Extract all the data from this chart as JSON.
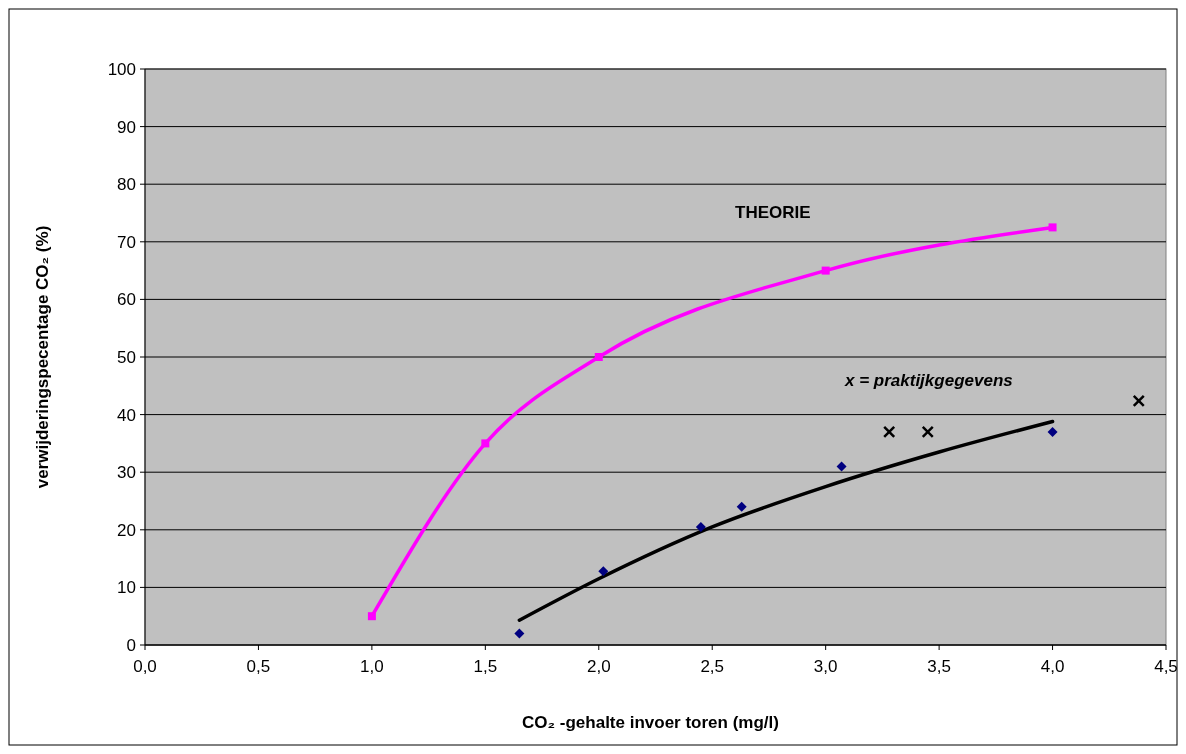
{
  "chart_data": {
    "type": "line",
    "xlabel": "CO₂ -gehalte invoer toren (mg/l)",
    "ylabel": "verwijderingspecentage CO₂ (%)",
    "xlim": [
      0,
      4.5
    ],
    "xticks": [
      {
        "value": 0,
        "label": "0,0"
      },
      {
        "value": 0.5,
        "label": "0,5"
      },
      {
        "value": 1,
        "label": "1,0"
      },
      {
        "value": 1.5,
        "label": "1,5"
      },
      {
        "value": 2,
        "label": "2,0"
      },
      {
        "value": 2.5,
        "label": "2,5"
      },
      {
        "value": 3,
        "label": "3,0"
      },
      {
        "value": 3.5,
        "label": "3,5"
      },
      {
        "value": 4,
        "label": "4,0"
      },
      {
        "value": 4.5,
        "label": "4,5"
      }
    ],
    "ylim": [
      0,
      100
    ],
    "yticks": [
      0,
      10,
      20,
      30,
      40,
      50,
      60,
      70,
      80,
      90,
      100
    ],
    "grid": "y",
    "series": [
      {
        "color": "#ff00ff",
        "marker": "square",
        "x": [
          1.0,
          1.5,
          2.0,
          3.0,
          4.0
        ],
        "values": [
          5,
          35,
          50,
          65,
          72.5
        ]
      },
      {
        "color": "#000000",
        "marker": "none",
        "x": [
          1.65,
          2.0,
          2.5,
          3.0,
          3.5,
          4.0
        ],
        "values": [
          4.3,
          11.5,
          20.5,
          27.5,
          33.5,
          38.8
        ]
      },
      {
        "type": "scatter",
        "color": "#000080",
        "marker": "diamond",
        "x": [
          1.65,
          2.02,
          2.45,
          2.63,
          3.07,
          4.0
        ],
        "values": [
          2,
          12.8,
          20.5,
          24,
          31,
          37
        ]
      },
      {
        "type": "scatter",
        "color": "#000000",
        "marker": "cross",
        "x": [
          3.28,
          3.45,
          4.38
        ],
        "values": [
          37,
          37,
          42.4
        ]
      }
    ],
    "annotations": [
      "THEORIE",
      "x = praktijkgegevens"
    ]
  }
}
